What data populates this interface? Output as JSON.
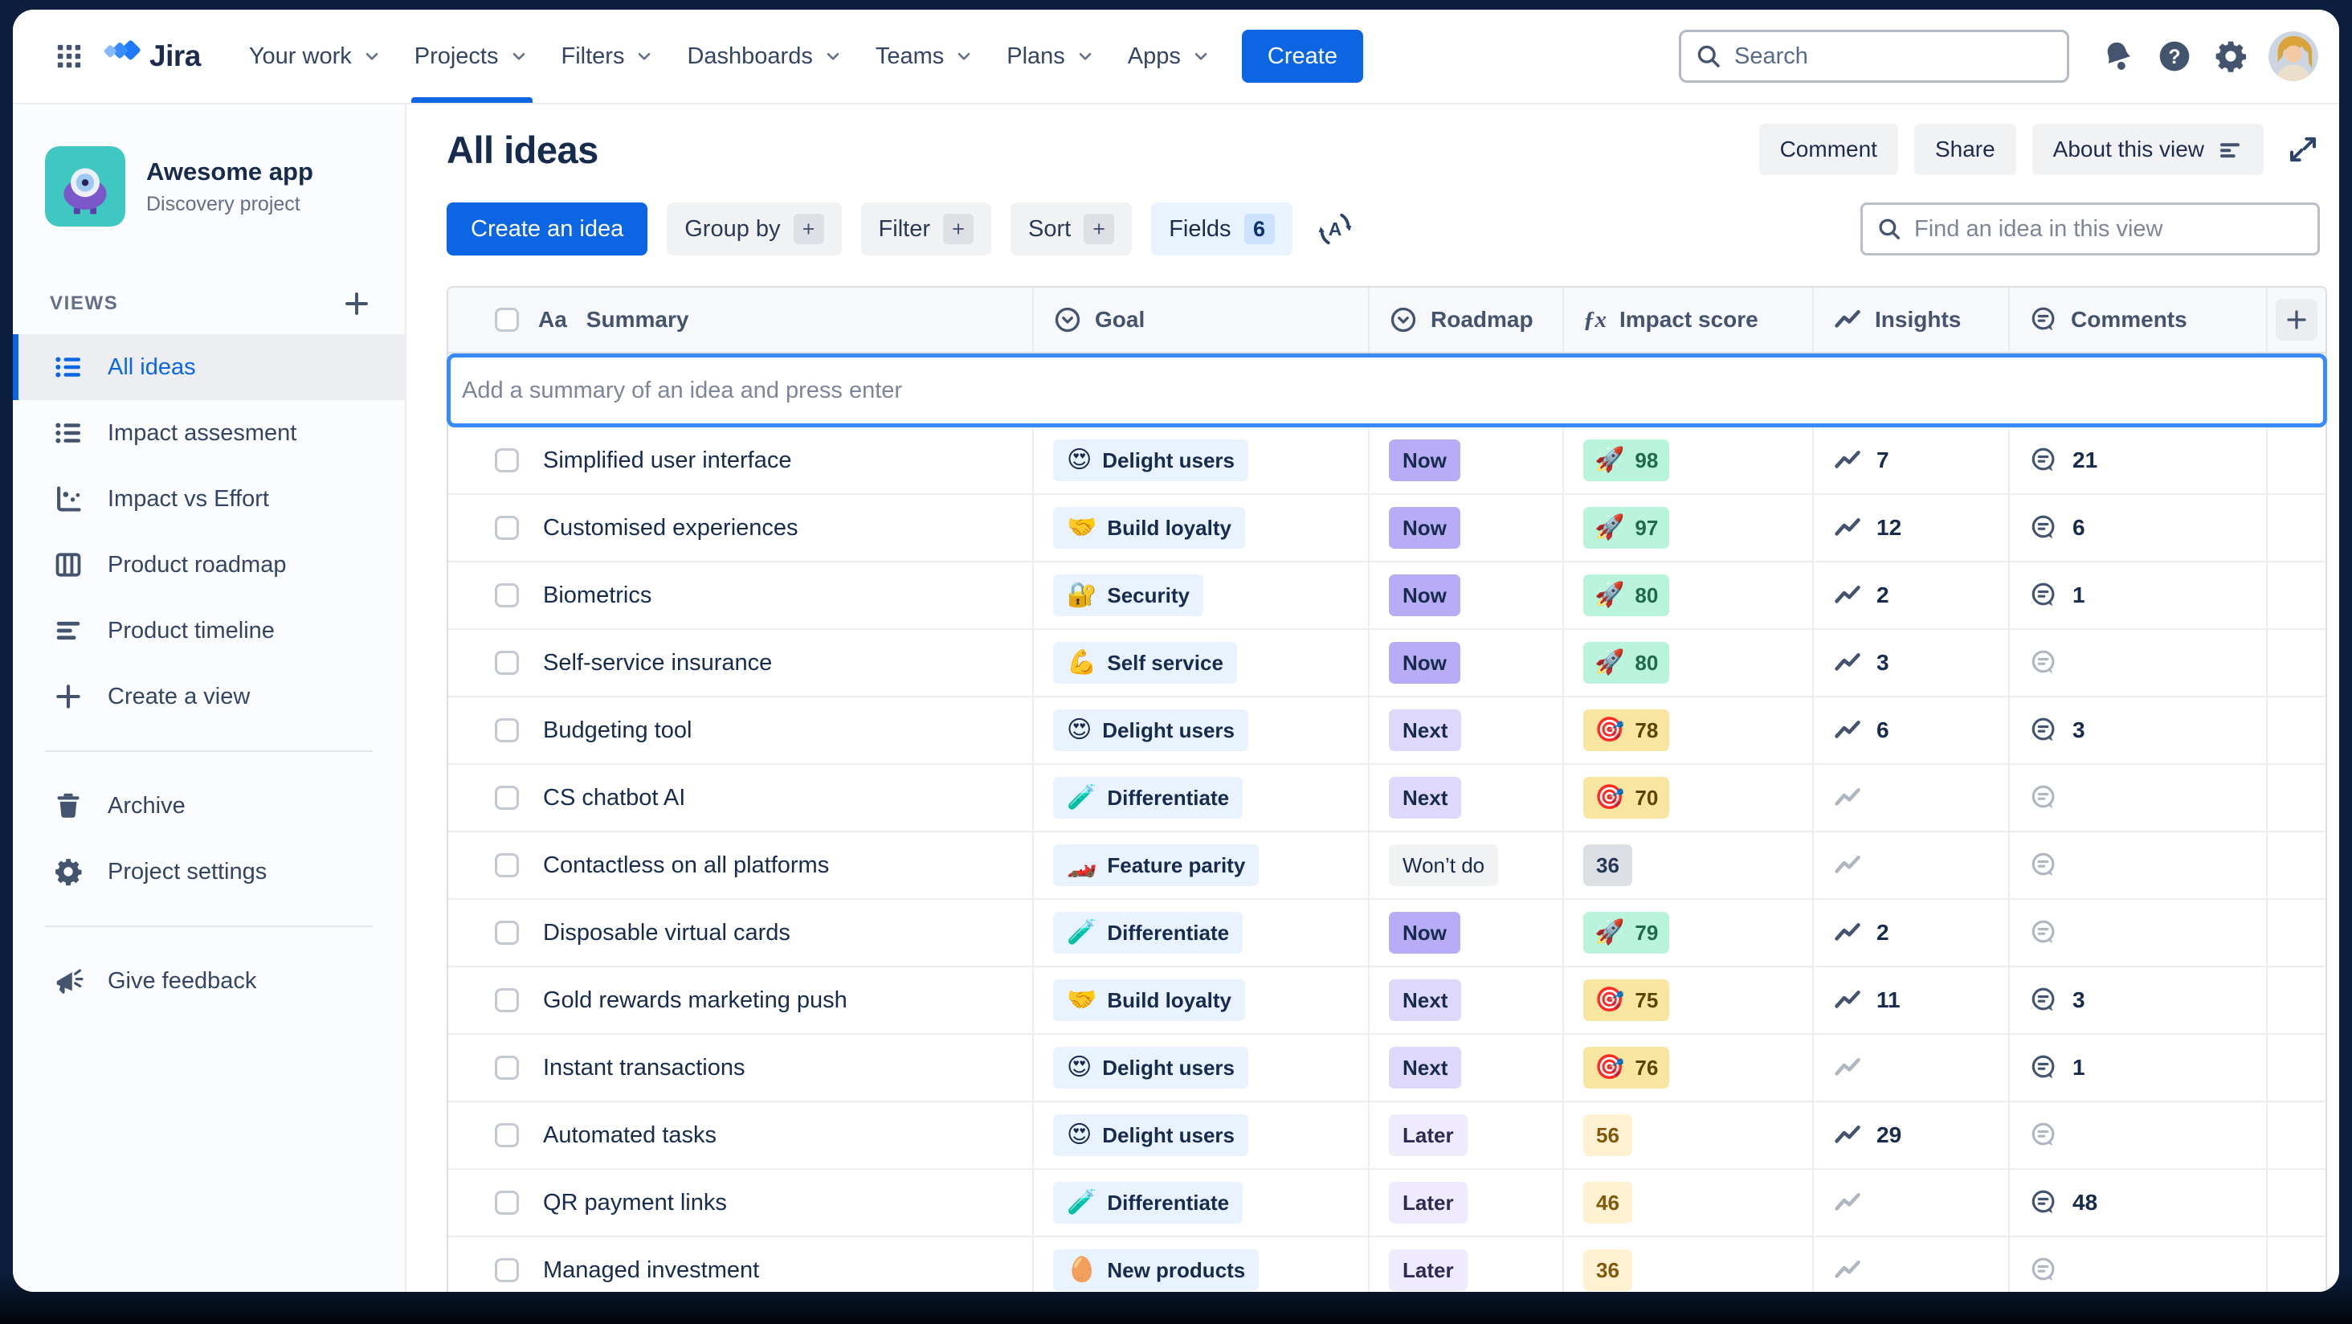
{
  "app": {
    "brand": "Jira"
  },
  "nav": {
    "items": [
      {
        "label": "Your work",
        "active": false
      },
      {
        "label": "Projects",
        "active": true
      },
      {
        "label": "Filters",
        "active": false
      },
      {
        "label": "Dashboards",
        "active": false
      },
      {
        "label": "Teams",
        "active": false
      },
      {
        "label": "Plans",
        "active": false
      },
      {
        "label": "Apps",
        "active": false
      }
    ],
    "create_label": "Create",
    "search_placeholder": "Search"
  },
  "sidebar": {
    "project": {
      "name": "Awesome app",
      "type": "Discovery project"
    },
    "views_label": "VIEWS",
    "views": [
      {
        "label": "All ideas",
        "icon": "list",
        "active": true
      },
      {
        "label": "Impact assesment",
        "icon": "list",
        "active": false
      },
      {
        "label": "Impact vs Effort",
        "icon": "scatter",
        "active": false
      },
      {
        "label": "Product roadmap",
        "icon": "board",
        "active": false
      },
      {
        "label": "Product timeline",
        "icon": "timeline",
        "active": false
      },
      {
        "label": "Create a view",
        "icon": "plus",
        "active": false
      }
    ],
    "tools": [
      {
        "label": "Archive",
        "icon": "trash"
      },
      {
        "label": "Project settings",
        "icon": "gear"
      }
    ],
    "feedback": {
      "label": "Give feedback"
    }
  },
  "header": {
    "title": "All ideas",
    "comment_label": "Comment",
    "share_label": "Share",
    "about_label": "About this view"
  },
  "toolbar": {
    "create_label": "Create an idea",
    "controls": [
      {
        "label": "Group by",
        "badge": "+",
        "highlighted": false
      },
      {
        "label": "Filter",
        "badge": "+",
        "highlighted": false
      },
      {
        "label": "Sort",
        "badge": "+",
        "highlighted": false
      },
      {
        "label": "Fields",
        "badge": "6",
        "highlighted": true
      }
    ],
    "find_placeholder": "Find an idea in this view"
  },
  "table": {
    "add_placeholder": "Add a summary of an idea and press enter",
    "columns": [
      {
        "label": "Summary",
        "icon": "text-type"
      },
      {
        "label": "Goal",
        "icon": "select"
      },
      {
        "label": "Roadmap",
        "icon": "select"
      },
      {
        "label": "Impact score",
        "icon": "formula"
      },
      {
        "label": "Insights",
        "icon": "trend"
      },
      {
        "label": "Comments",
        "icon": "comment"
      }
    ],
    "rows": [
      {
        "summary": "Simplified user interface",
        "goal": {
          "emoji": "😍",
          "label": "Delight users"
        },
        "roadmap": {
          "label": "Now",
          "tone": "now"
        },
        "impact": {
          "value": 98,
          "style": "rocket",
          "emoji": "🚀"
        },
        "insights": 7,
        "comments": 21
      },
      {
        "summary": "Customised experiences",
        "goal": {
          "emoji": "🤝",
          "label": "Build loyalty"
        },
        "roadmap": {
          "label": "Now",
          "tone": "now"
        },
        "impact": {
          "value": 97,
          "style": "rocket",
          "emoji": "🚀"
        },
        "insights": 12,
        "comments": 6
      },
      {
        "summary": "Biometrics",
        "goal": {
          "emoji": "🔐",
          "label": "Security"
        },
        "roadmap": {
          "label": "Now",
          "tone": "now"
        },
        "impact": {
          "value": 80,
          "style": "rocket",
          "emoji": "🚀"
        },
        "insights": 2,
        "comments": 1
      },
      {
        "summary": "Self-service insurance",
        "goal": {
          "emoji": "💪",
          "label": "Self service"
        },
        "roadmap": {
          "label": "Now",
          "tone": "now"
        },
        "impact": {
          "value": 80,
          "style": "rocket",
          "emoji": "🚀"
        },
        "insights": 3,
        "comments": null
      },
      {
        "summary": "Budgeting tool",
        "goal": {
          "emoji": "😍",
          "label": "Delight users"
        },
        "roadmap": {
          "label": "Next",
          "tone": "next"
        },
        "impact": {
          "value": 78,
          "style": "target",
          "emoji": "🎯"
        },
        "insights": 6,
        "comments": 3
      },
      {
        "summary": "CS chatbot AI",
        "goal": {
          "emoji": "🧪",
          "label": "Differentiate"
        },
        "roadmap": {
          "label": "Next",
          "tone": "next"
        },
        "impact": {
          "value": 70,
          "style": "target",
          "emoji": "🎯"
        },
        "insights": null,
        "comments": null
      },
      {
        "summary": "Contactless on all platforms",
        "goal": {
          "emoji": "🏎️",
          "label": "Feature parity"
        },
        "roadmap": {
          "label": "Won’t do",
          "tone": "wontdo"
        },
        "impact": {
          "value": 36,
          "style": "gray",
          "emoji": null
        },
        "insights": null,
        "comments": null
      },
      {
        "summary": "Disposable virtual cards",
        "goal": {
          "emoji": "🧪",
          "label": "Differentiate"
        },
        "roadmap": {
          "label": "Now",
          "tone": "now"
        },
        "impact": {
          "value": 79,
          "style": "rocket",
          "emoji": "🚀"
        },
        "insights": 2,
        "comments": null
      },
      {
        "summary": "Gold rewards marketing push",
        "goal": {
          "emoji": "🤝",
          "label": "Build loyalty"
        },
        "roadmap": {
          "label": "Next",
          "tone": "next"
        },
        "impact": {
          "value": 75,
          "style": "target",
          "emoji": "🎯"
        },
        "insights": 11,
        "comments": 3
      },
      {
        "summary": "Instant transactions",
        "goal": {
          "emoji": "😍",
          "label": "Delight users"
        },
        "roadmap": {
          "label": "Next",
          "tone": "next"
        },
        "impact": {
          "value": 76,
          "style": "target",
          "emoji": "🎯"
        },
        "insights": null,
        "comments": 1
      },
      {
        "summary": "Automated tasks",
        "goal": {
          "emoji": "😍",
          "label": "Delight users"
        },
        "roadmap": {
          "label": "Later",
          "tone": "later"
        },
        "impact": {
          "value": 56,
          "style": "warm",
          "emoji": null
        },
        "insights": 29,
        "comments": null
      },
      {
        "summary": "QR payment links",
        "goal": {
          "emoji": "🧪",
          "label": "Differentiate"
        },
        "roadmap": {
          "label": "Later",
          "tone": "later"
        },
        "impact": {
          "value": 46,
          "style": "warm",
          "emoji": null
        },
        "insights": null,
        "comments": 48
      },
      {
        "summary": "Managed investment",
        "goal": {
          "emoji": "🥚",
          "label": "New products"
        },
        "roadmap": {
          "label": "Later",
          "tone": "later"
        },
        "impact": {
          "value": 36,
          "style": "warm",
          "emoji": null
        },
        "insights": null,
        "comments": null
      }
    ]
  },
  "colors": {
    "accent_blue": "#0C66E4",
    "goal_chip_bg": "#E9F2FF",
    "roadmap_now": "#B8ACF6",
    "roadmap_next": "#DFD8FD",
    "roadmap_later": "#EFEAFD",
    "roadmap_wontdo": "#F1F2F4",
    "impact_green": "#BAF3DB",
    "impact_yellow": "#F8E6A0",
    "impact_warm": "#FFF1D2",
    "impact_gray": "#DCDFE4"
  }
}
